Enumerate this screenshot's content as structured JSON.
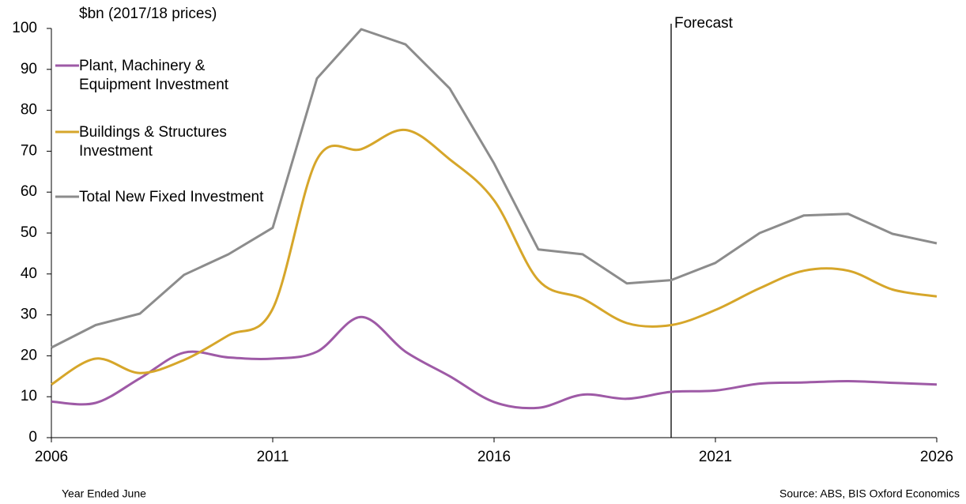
{
  "chart_data": {
    "type": "line",
    "y_label": "$bn (2017/18 prices)",
    "x_label": "Year Ended June",
    "source": "Source: ABS, BIS Oxford Economics",
    "annotation": {
      "text": "Forecast",
      "x": 2020
    },
    "x": [
      2006,
      2007,
      2008,
      2009,
      2010,
      2011,
      2012,
      2013,
      2014,
      2015,
      2016,
      2017,
      2018,
      2019,
      2020,
      2021,
      2022,
      2023,
      2024,
      2025,
      2026
    ],
    "series": [
      {
        "name": "Plant, Machinery & Equipment Investment",
        "color": "#9e5aa6",
        "smooth": true,
        "values": [
          8.8,
          8.5,
          14.5,
          20.8,
          19.6,
          19.3,
          21,
          29.5,
          21,
          15,
          8.7,
          7.3,
          10.5,
          9.5,
          11.2,
          11.5,
          13.2,
          13.5,
          13.8,
          13.4,
          13
        ]
      },
      {
        "name": "Buildings & Structures Investment",
        "color": "#d6a62a",
        "smooth": true,
        "values": [
          13,
          19.3,
          15.8,
          19,
          25,
          31.5,
          68,
          70.5,
          75.2,
          68,
          58,
          38.5,
          34,
          28,
          27.5,
          31.2,
          36.5,
          40.8,
          40.8,
          36.2,
          34.5
        ]
      },
      {
        "name": "Total New Fixed Investment",
        "color": "#8c8c8c",
        "smooth": false,
        "values": [
          22,
          27.5,
          30.3,
          39.8,
          44.8,
          51.3,
          87.8,
          99.8,
          96.1,
          85.3,
          67,
          46,
          44.8,
          37.7,
          38.5,
          42.7,
          50,
          54.3,
          54.7,
          49.8,
          47.5
        ]
      }
    ],
    "xlim": [
      2006,
      2026
    ],
    "xticks": [
      2006,
      2011,
      2016,
      2021,
      2026
    ],
    "ylim": [
      0,
      100
    ],
    "yticks": [
      0,
      10,
      20,
      30,
      40,
      50,
      60,
      70,
      80,
      90,
      100
    ],
    "grid": false
  }
}
